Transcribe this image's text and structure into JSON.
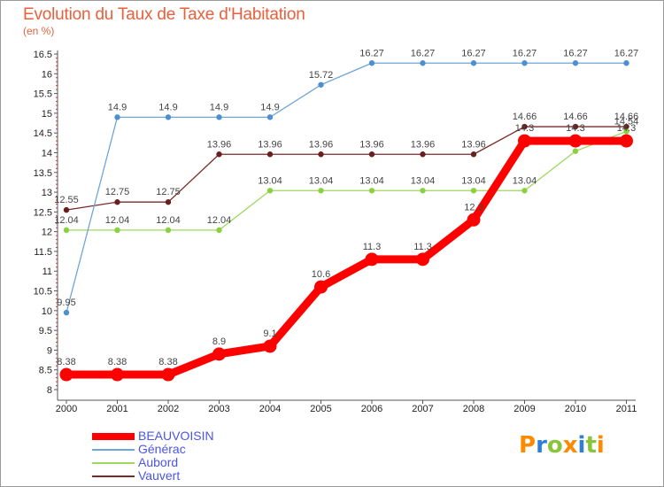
{
  "chart_data": {
    "type": "line",
    "title": "Evolution du Taux de Taxe d'Habitation",
    "subtitle": "(en %)",
    "x": [
      "2000",
      "2001",
      "2002",
      "2003",
      "2004",
      "2005",
      "2006",
      "2007",
      "2008",
      "2009",
      "2010",
      "2011"
    ],
    "ylim": [
      8,
      16.5
    ],
    "yticks": [
      "8",
      "8.5",
      "9",
      "9.5",
      "10",
      "10.5",
      "11",
      "11.5",
      "12",
      "12.5",
      "13",
      "13.5",
      "14",
      "14.5",
      "15",
      "15.5",
      "16",
      "16.5"
    ],
    "grid": false,
    "legend_position": "bottom-left",
    "series": [
      {
        "name": "BEAUVOISIN",
        "color": "#ff0000",
        "values": [
          8.38,
          8.38,
          8.38,
          8.9,
          9.1,
          10.6,
          11.3,
          11.3,
          12.3,
          14.3,
          14.3,
          14.3
        ],
        "labels": [
          "8.38",
          "8.38",
          "8.38",
          "8.9",
          "9.1",
          "10.6",
          "11.3",
          "11.3",
          "12.3",
          "14.3",
          "14.3",
          "14.3"
        ]
      },
      {
        "name": "Générac",
        "color": "#6fa6d8",
        "values": [
          9.95,
          14.9,
          14.9,
          14.9,
          14.9,
          15.72,
          16.27,
          16.27,
          16.27,
          16.27,
          16.27,
          16.27
        ],
        "labels": [
          "9.95",
          "14.9",
          "14.9",
          "14.9",
          "14.9",
          "15.72",
          "16.27",
          "16.27",
          "16.27",
          "16.27",
          "16.27",
          "16.27"
        ]
      },
      {
        "name": "Aubord",
        "color": "#9ed85e",
        "values": [
          12.04,
          12.04,
          12.04,
          12.04,
          13.04,
          13.04,
          13.04,
          13.04,
          13.04,
          13.04,
          14.04,
          14.54
        ],
        "labels": [
          "12.04",
          "12.04",
          "12.04",
          "12.04",
          "13.04",
          "13.04",
          "13.04",
          "13.04",
          "13.04",
          "13.04",
          "14.04",
          "14.54"
        ]
      },
      {
        "name": "Vauvert",
        "color": "#7a2a2a",
        "values": [
          12.55,
          12.75,
          12.75,
          13.96,
          13.96,
          13.96,
          13.96,
          13.96,
          13.96,
          14.66,
          14.66,
          14.66
        ],
        "labels": [
          "12.55",
          "12.75",
          "12.75",
          "13.96",
          "13.96",
          "13.96",
          "13.96",
          "13.96",
          "13.96",
          "14.66",
          "14.66",
          "14.66"
        ]
      }
    ]
  },
  "legend": [
    {
      "label": "BEAUVOISIN",
      "color": "#ff0000"
    },
    {
      "label": "Générac",
      "color": "#6fa6d8"
    },
    {
      "label": "Aubord",
      "color": "#9ed85e"
    },
    {
      "label": "Vauvert",
      "color": "#7a2a2a"
    }
  ],
  "logo": {
    "text": "Proxiti"
  }
}
